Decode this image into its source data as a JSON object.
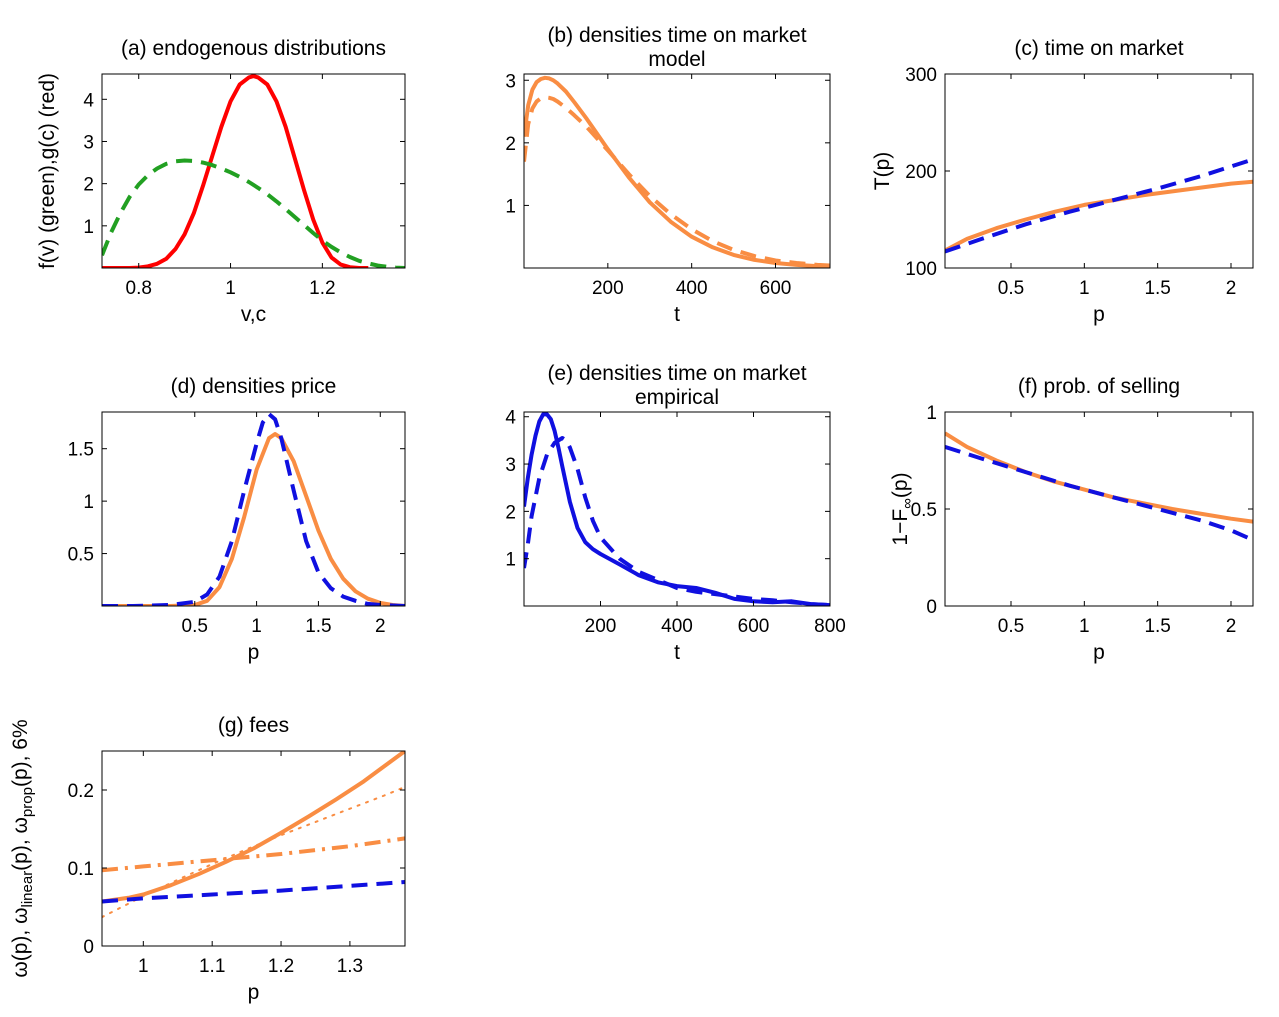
{
  "chart_data": [
    {
      "id": "a",
      "type": "line",
      "title": "(a) endogenous distributions",
      "xlabel": "v,c",
      "ylabel": "f(v) (green),g(c) (red)",
      "xlim": [
        0.72,
        1.38
      ],
      "ylim": [
        0,
        4.6
      ],
      "xticks": [
        0.8,
        1,
        1.2
      ],
      "xtick_labels": [
        "0.8",
        "1",
        "1.2"
      ],
      "yticks": [
        1,
        2,
        3,
        4
      ],
      "ytick_labels": [
        "1",
        "2",
        "3",
        "4"
      ],
      "series": [
        {
          "color": "#ff0000",
          "dash": "solid",
          "x": [
            0.72,
            0.75,
            0.78,
            0.8,
            0.82,
            0.84,
            0.86,
            0.88,
            0.9,
            0.92,
            0.94,
            0.96,
            0.98,
            1.0,
            1.02,
            1.04,
            1.05,
            1.06,
            1.08,
            1.1,
            1.12,
            1.14,
            1.16,
            1.18,
            1.2,
            1.22,
            1.24,
            1.26,
            1.28,
            1.3
          ],
          "y": [
            0,
            0,
            0,
            0.01,
            0.04,
            0.1,
            0.22,
            0.45,
            0.8,
            1.3,
            1.95,
            2.65,
            3.35,
            3.95,
            4.35,
            4.52,
            4.55,
            4.52,
            4.35,
            3.95,
            3.35,
            2.6,
            1.85,
            1.15,
            0.6,
            0.25,
            0.08,
            0.02,
            0.0,
            0.0
          ]
        },
        {
          "color": "#22a022",
          "dash": "dashed",
          "x": [
            0.72,
            0.74,
            0.76,
            0.78,
            0.8,
            0.82,
            0.84,
            0.86,
            0.88,
            0.9,
            0.92,
            0.94,
            0.96,
            0.98,
            1.0,
            1.02,
            1.04,
            1.06,
            1.08,
            1.1,
            1.12,
            1.14,
            1.16,
            1.18,
            1.2,
            1.22,
            1.24,
            1.26,
            1.28,
            1.3,
            1.32,
            1.34,
            1.36,
            1.38
          ],
          "y": [
            0.3,
            0.85,
            1.3,
            1.68,
            1.98,
            2.2,
            2.36,
            2.47,
            2.53,
            2.55,
            2.54,
            2.5,
            2.44,
            2.36,
            2.27,
            2.16,
            2.04,
            1.9,
            1.75,
            1.58,
            1.4,
            1.21,
            1.02,
            0.83,
            0.65,
            0.5,
            0.37,
            0.26,
            0.17,
            0.11,
            0.06,
            0.03,
            0.01,
            0.0
          ]
        }
      ]
    },
    {
      "id": "b",
      "type": "line",
      "title": "(b) densities time on market",
      "title2": "model",
      "xlabel": "t",
      "ylabel": "",
      "xlim": [
        0,
        730
      ],
      "ylim": [
        0,
        3.1
      ],
      "xticks": [
        200,
        400,
        600
      ],
      "xtick_labels": [
        "200",
        "400",
        "600"
      ],
      "yticks": [
        1,
        2,
        3
      ],
      "ytick_labels": [
        "1",
        "2",
        "3"
      ],
      "series": [
        {
          "color": "#f98d43",
          "dash": "solid",
          "x": [
            0,
            10,
            20,
            30,
            40,
            50,
            60,
            70,
            80,
            100,
            120,
            150,
            200,
            250,
            300,
            350,
            400,
            450,
            500,
            550,
            600,
            650,
            700,
            730
          ],
          "y": [
            2.1,
            2.6,
            2.85,
            2.97,
            3.02,
            3.04,
            3.03,
            3.0,
            2.95,
            2.82,
            2.65,
            2.38,
            1.9,
            1.45,
            1.05,
            0.74,
            0.5,
            0.33,
            0.21,
            0.13,
            0.08,
            0.05,
            0.03,
            0.02
          ]
        },
        {
          "color": "#f98d43",
          "dash": "dashed",
          "x": [
            0,
            10,
            20,
            30,
            40,
            50,
            60,
            70,
            80,
            100,
            120,
            150,
            200,
            250,
            300,
            350,
            400,
            450,
            500,
            550,
            600,
            650,
            700,
            730
          ],
          "y": [
            1.7,
            2.3,
            2.55,
            2.66,
            2.71,
            2.73,
            2.72,
            2.7,
            2.66,
            2.56,
            2.44,
            2.25,
            1.88,
            1.5,
            1.15,
            0.86,
            0.62,
            0.43,
            0.29,
            0.19,
            0.12,
            0.08,
            0.05,
            0.04
          ]
        }
      ]
    },
    {
      "id": "c",
      "type": "line",
      "title": "(c) time on market",
      "xlabel": "p",
      "ylabel": "T(p)",
      "xlim": [
        0.05,
        2.15
      ],
      "ylim": [
        100,
        300
      ],
      "xticks": [
        0.5,
        1,
        1.5,
        2
      ],
      "xtick_labels": [
        "0.5",
        "1",
        "1.5",
        "2"
      ],
      "yticks": [
        100,
        200,
        300
      ],
      "ytick_labels": [
        "100",
        "200",
        "300"
      ],
      "series": [
        {
          "color": "#f98d43",
          "dash": "solid",
          "x": [
            0.05,
            0.2,
            0.4,
            0.6,
            0.8,
            1.0,
            1.2,
            1.4,
            1.6,
            1.8,
            2.0,
            2.15
          ],
          "y": [
            118,
            130,
            141,
            150,
            158,
            165,
            170,
            175,
            179,
            183,
            187,
            189
          ]
        },
        {
          "color": "#1010e0",
          "dash": "dashed",
          "x": [
            0.05,
            0.3,
            0.6,
            0.9,
            1.2,
            1.5,
            1.8,
            2.15
          ],
          "y": [
            117,
            130,
            145,
            158,
            170,
            182,
            195,
            212
          ]
        }
      ]
    },
    {
      "id": "d",
      "type": "line",
      "title": "(d) densities price",
      "xlabel": "p",
      "ylabel": "",
      "xlim": [
        -0.25,
        2.2
      ],
      "ylim": [
        0,
        1.85
      ],
      "xticks": [
        0.5,
        1,
        1.5,
        2
      ],
      "xtick_labels": [
        "0.5",
        "1",
        "1.5",
        "2"
      ],
      "yticks": [
        0.5,
        1,
        1.5
      ],
      "ytick_labels": [
        "0.5",
        "1",
        "1.5"
      ],
      "series": [
        {
          "color": "#f98d43",
          "dash": "solid",
          "x": [
            -0.25,
            0.0,
            0.3,
            0.5,
            0.6,
            0.7,
            0.8,
            0.9,
            1.0,
            1.1,
            1.15,
            1.2,
            1.3,
            1.4,
            1.5,
            1.6,
            1.7,
            1.8,
            1.9,
            2.0,
            2.1,
            2.2
          ],
          "y": [
            0,
            0,
            0,
            0.01,
            0.05,
            0.18,
            0.45,
            0.85,
            1.3,
            1.6,
            1.64,
            1.6,
            1.38,
            1.05,
            0.72,
            0.45,
            0.26,
            0.14,
            0.07,
            0.03,
            0.01,
            0.0
          ]
        },
        {
          "color": "#1010e0",
          "dash": "dashed",
          "x": [
            -0.25,
            0.0,
            0.3,
            0.5,
            0.6,
            0.7,
            0.8,
            0.9,
            1.0,
            1.05,
            1.1,
            1.15,
            1.2,
            1.3,
            1.4,
            1.5,
            1.6,
            1.7,
            1.8,
            1.9,
            2.0,
            2.2
          ],
          "y": [
            0,
            0,
            0.01,
            0.04,
            0.11,
            0.28,
            0.62,
            1.1,
            1.55,
            1.75,
            1.83,
            1.78,
            1.6,
            1.1,
            0.62,
            0.32,
            0.17,
            0.09,
            0.05,
            0.02,
            0.01,
            0.0
          ]
        }
      ]
    },
    {
      "id": "e",
      "type": "line",
      "title": "(e) densities time on market",
      "title2": "empirical",
      "xlabel": "t",
      "ylabel": "",
      "xlim": [
        0,
        800
      ],
      "ylim": [
        0,
        4.1
      ],
      "xticks": [
        200,
        400,
        600,
        800
      ],
      "xtick_labels": [
        "200",
        "400",
        "600",
        "800"
      ],
      "yticks": [
        1,
        2,
        3,
        4
      ],
      "ytick_labels": [
        "1",
        "2",
        "3",
        "4"
      ],
      "series": [
        {
          "color": "#1010e0",
          "dash": "solid",
          "x": [
            0,
            10,
            20,
            30,
            40,
            50,
            60,
            70,
            80,
            90,
            100,
            120,
            140,
            160,
            180,
            200,
            250,
            300,
            350,
            400,
            450,
            500,
            550,
            600,
            650,
            700,
            750,
            800
          ],
          "y": [
            2.1,
            2.7,
            3.2,
            3.6,
            3.9,
            4.05,
            4.05,
            3.95,
            3.7,
            3.35,
            2.95,
            2.2,
            1.65,
            1.35,
            1.2,
            1.1,
            0.88,
            0.65,
            0.5,
            0.42,
            0.38,
            0.28,
            0.15,
            0.1,
            0.08,
            0.1,
            0.04,
            0.02
          ]
        },
        {
          "color": "#1010e0",
          "dash": "dashed",
          "x": [
            0,
            10,
            20,
            40,
            60,
            80,
            100,
            110,
            120,
            140,
            160,
            180,
            200,
            250,
            300,
            350,
            400,
            450,
            500,
            550,
            600,
            650,
            700,
            750,
            800
          ],
          "y": [
            0.8,
            1.3,
            1.9,
            2.7,
            3.2,
            3.45,
            3.55,
            3.5,
            3.35,
            2.9,
            2.3,
            1.8,
            1.45,
            1.0,
            0.72,
            0.55,
            0.38,
            0.3,
            0.25,
            0.2,
            0.15,
            0.12,
            0.08,
            0.04,
            0.02
          ]
        }
      ]
    },
    {
      "id": "f",
      "type": "line",
      "title": "(f) prob. of selling",
      "xlabel": "p",
      "ylabel": "1−F∞(p)",
      "ylabel_parts": {
        "main": "1−F",
        "sub": "∞",
        "tail": "(p)"
      },
      "xlim": [
        0.05,
        2.15
      ],
      "ylim": [
        0,
        1
      ],
      "xticks": [
        0.5,
        1,
        1.5,
        2
      ],
      "xtick_labels": [
        "0.5",
        "1",
        "1.5",
        "2"
      ],
      "yticks": [
        0,
        0.5,
        1
      ],
      "ytick_labels": [
        "0",
        "0.5",
        "1"
      ],
      "series": [
        {
          "color": "#f98d43",
          "dash": "solid",
          "x": [
            0.05,
            0.2,
            0.4,
            0.6,
            0.8,
            1.0,
            1.2,
            1.4,
            1.6,
            1.8,
            2.0,
            2.15
          ],
          "y": [
            0.89,
            0.82,
            0.75,
            0.69,
            0.64,
            0.6,
            0.56,
            0.53,
            0.5,
            0.475,
            0.45,
            0.435
          ]
        },
        {
          "color": "#1010e0",
          "dash": "dashed",
          "x": [
            0.05,
            0.3,
            0.6,
            0.9,
            1.2,
            1.5,
            1.8,
            2.0,
            2.15
          ],
          "y": [
            0.82,
            0.76,
            0.69,
            0.62,
            0.56,
            0.5,
            0.44,
            0.39,
            0.34
          ]
        }
      ]
    },
    {
      "id": "g",
      "type": "line",
      "title": "(g) fees",
      "xlabel": "p",
      "ylabel": "ω(p), ωlinear(p), ωprop(p), 6%",
      "ylabel_parts": [
        {
          "t": "ω(p), ω",
          "sub": false
        },
        {
          "t": "linear",
          "sub": true
        },
        {
          "t": "(p), ω",
          "sub": false
        },
        {
          "t": "prop",
          "sub": true
        },
        {
          "t": "(p), 6%",
          "sub": false
        }
      ],
      "xlim": [
        0.94,
        1.38
      ],
      "ylim": [
        0,
        0.25
      ],
      "xticks": [
        1,
        1.1,
        1.2,
        1.3
      ],
      "xtick_labels": [
        "1",
        "1.1",
        "1.2",
        "1.3"
      ],
      "yticks": [
        0,
        0.1,
        0.2
      ],
      "ytick_labels": [
        "0",
        "0.1",
        "0.2"
      ],
      "series": [
        {
          "color": "#f98d43",
          "dash": "solid",
          "x": [
            0.94,
            0.98,
            1.0,
            1.04,
            1.08,
            1.12,
            1.16,
            1.2,
            1.24,
            1.28,
            1.32,
            1.36,
            1.38
          ],
          "y": [
            0.057,
            0.062,
            0.066,
            0.078,
            0.092,
            0.108,
            0.125,
            0.145,
            0.166,
            0.188,
            0.211,
            0.237,
            0.25
          ]
        },
        {
          "color": "#f98d43",
          "dash": "dotted",
          "x": [
            0.94,
            1.0,
            1.05,
            1.1,
            1.15,
            1.2,
            1.25,
            1.3,
            1.35,
            1.38
          ],
          "y": [
            0.037,
            0.064,
            0.085,
            0.105,
            0.124,
            0.142,
            0.159,
            0.176,
            0.193,
            0.204
          ]
        },
        {
          "color": "#f98d43",
          "dash": "dashdot",
          "x": [
            0.94,
            1.0,
            1.1,
            1.2,
            1.3,
            1.38
          ],
          "y": [
            0.097,
            0.102,
            0.11,
            0.118,
            0.128,
            0.138
          ]
        },
        {
          "color": "#1010e0",
          "dash": "dashed",
          "x": [
            0.94,
            1.0,
            1.1,
            1.2,
            1.3,
            1.38
          ],
          "y": [
            0.057,
            0.061,
            0.066,
            0.071,
            0.077,
            0.082
          ]
        }
      ]
    }
  ]
}
